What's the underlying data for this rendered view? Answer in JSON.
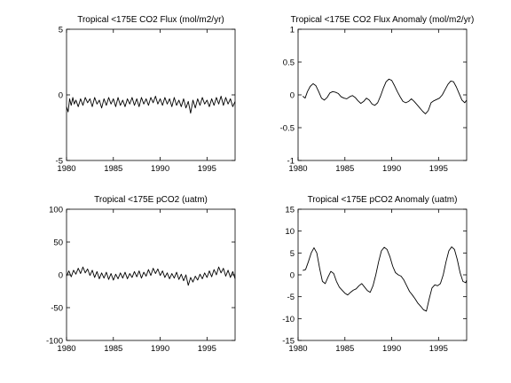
{
  "chart_data": [
    {
      "type": "line",
      "title": "Tropical <175E CO2 Flux (mol/m2/yr)",
      "xlim": [
        1980,
        1998
      ],
      "ylim": [
        -5,
        5
      ],
      "xticks": [
        1980,
        1985,
        1990,
        1995
      ],
      "yticks": [
        -5,
        0,
        5
      ],
      "xtick_labels": [
        "1980",
        "1985",
        "1990",
        "1995"
      ],
      "ytick_labels": [
        "-5",
        "0",
        "5"
      ],
      "series": [
        {
          "color": "#000000",
          "x": [
            1980.0,
            1980.17,
            1980.33,
            1980.5,
            1980.67,
            1980.83,
            1981.0,
            1981.25,
            1981.5,
            1981.75,
            1982.0,
            1982.25,
            1982.5,
            1982.75,
            1983.0,
            1983.25,
            1983.5,
            1983.75,
            1984.0,
            1984.25,
            1984.5,
            1984.75,
            1985.0,
            1985.25,
            1985.5,
            1985.75,
            1986.0,
            1986.25,
            1986.5,
            1986.75,
            1987.0,
            1987.25,
            1987.5,
            1987.75,
            1988.0,
            1988.25,
            1988.5,
            1988.75,
            1989.0,
            1989.25,
            1989.5,
            1989.75,
            1990.0,
            1990.25,
            1990.5,
            1990.75,
            1991.0,
            1991.25,
            1991.5,
            1991.75,
            1992.0,
            1992.25,
            1992.5,
            1992.75,
            1993.0,
            1993.25,
            1993.5,
            1993.75,
            1994.0,
            1994.25,
            1994.5,
            1994.75,
            1995.0,
            1995.25,
            1995.5,
            1995.75,
            1996.0,
            1996.25,
            1996.5,
            1996.75,
            1997.0,
            1997.25,
            1997.5,
            1997.75,
            1998.0
          ],
          "y": [
            -0.9,
            -1.3,
            -0.3,
            -0.8,
            -0.2,
            -0.7,
            -0.4,
            -0.9,
            -0.3,
            -0.8,
            -0.2,
            -0.6,
            -0.3,
            -0.9,
            -0.2,
            -0.7,
            -0.4,
            -1.0,
            -0.3,
            -0.8,
            -0.2,
            -0.7,
            -0.3,
            -0.9,
            -0.2,
            -0.8,
            -0.4,
            -0.9,
            -0.3,
            -0.7,
            -0.2,
            -0.8,
            -0.3,
            -0.9,
            -0.2,
            -0.7,
            -0.3,
            -0.8,
            -0.2,
            -0.6,
            -0.1,
            -0.7,
            -0.3,
            -0.8,
            -0.2,
            -0.7,
            -0.3,
            -0.9,
            -0.2,
            -0.8,
            -0.4,
            -0.9,
            -0.3,
            -1.0,
            -0.5,
            -1.4,
            -0.4,
            -1.0,
            -0.3,
            -0.8,
            -0.2,
            -0.7,
            -0.4,
            -0.9,
            -0.3,
            -0.8,
            -0.2,
            -0.7,
            -0.1,
            -0.8,
            -0.2,
            -0.7,
            -0.3,
            -0.9,
            -0.5
          ]
        }
      ]
    },
    {
      "type": "line",
      "title": "Tropical <175E CO2 Flux Anomaly (mol/m2/yr)",
      "xlim": [
        1980,
        1998
      ],
      "ylim": [
        -1,
        1
      ],
      "xticks": [
        1980,
        1985,
        1990,
        1995
      ],
      "yticks": [
        -1,
        -0.5,
        0,
        0.5,
        1
      ],
      "xtick_labels": [
        "1980",
        "1985",
        "1990",
        "1995"
      ],
      "ytick_labels": [
        "-1",
        "-0.5",
        "0",
        "0.5",
        "1"
      ],
      "series": [
        {
          "color": "#000000",
          "x": [
            1980.5,
            1980.75,
            1981.0,
            1981.3,
            1981.6,
            1981.9,
            1982.2,
            1982.5,
            1982.8,
            1983.1,
            1983.4,
            1983.7,
            1984.0,
            1984.3,
            1984.6,
            1984.9,
            1985.2,
            1985.5,
            1985.8,
            1986.1,
            1986.4,
            1986.7,
            1987.0,
            1987.3,
            1987.6,
            1987.9,
            1988.2,
            1988.5,
            1988.8,
            1989.1,
            1989.4,
            1989.7,
            1990.0,
            1990.3,
            1990.6,
            1990.9,
            1991.2,
            1991.5,
            1991.8,
            1992.1,
            1992.4,
            1992.7,
            1993.0,
            1993.3,
            1993.6,
            1993.9,
            1994.2,
            1994.5,
            1994.8,
            1995.1,
            1995.4,
            1995.7,
            1996.0,
            1996.3,
            1996.6,
            1996.9,
            1997.2,
            1997.5,
            1997.8,
            1998.0
          ],
          "y": [
            -0.02,
            -0.05,
            0.05,
            0.13,
            0.17,
            0.14,
            0.05,
            -0.05,
            -0.08,
            -0.04,
            0.03,
            0.05,
            0.04,
            0.02,
            -0.03,
            -0.05,
            -0.06,
            -0.03,
            -0.01,
            -0.04,
            -0.09,
            -0.13,
            -0.1,
            -0.05,
            -0.08,
            -0.14,
            -0.16,
            -0.12,
            -0.02,
            0.1,
            0.2,
            0.24,
            0.22,
            0.14,
            0.05,
            -0.03,
            -0.1,
            -0.12,
            -0.1,
            -0.06,
            -0.1,
            -0.15,
            -0.2,
            -0.25,
            -0.29,
            -0.24,
            -0.12,
            -0.09,
            -0.07,
            -0.05,
            0.0,
            0.08,
            0.16,
            0.21,
            0.2,
            0.12,
            0.02,
            -0.08,
            -0.12,
            -0.08
          ]
        }
      ]
    },
    {
      "type": "line",
      "title": "Tropical <175E pCO2 (uatm)",
      "xlim": [
        1980,
        1998
      ],
      "ylim": [
        -100,
        100
      ],
      "xticks": [
        1980,
        1985,
        1990,
        1995
      ],
      "yticks": [
        -100,
        -50,
        0,
        50,
        100
      ],
      "xtick_labels": [
        "1980",
        "1985",
        "1990",
        "1995"
      ],
      "ytick_labels": [
        "-100",
        "-50",
        "0",
        "50",
        "100"
      ],
      "series": [
        {
          "color": "#000000",
          "x": [
            1980.0,
            1980.25,
            1980.5,
            1980.75,
            1981.0,
            1981.25,
            1981.5,
            1981.75,
            1982.0,
            1982.25,
            1982.5,
            1982.75,
            1983.0,
            1983.25,
            1983.5,
            1983.75,
            1984.0,
            1984.25,
            1984.5,
            1984.75,
            1985.0,
            1985.25,
            1985.5,
            1985.75,
            1986.0,
            1986.25,
            1986.5,
            1986.75,
            1987.0,
            1987.25,
            1987.5,
            1987.75,
            1988.0,
            1988.25,
            1988.5,
            1988.75,
            1989.0,
            1989.25,
            1989.5,
            1989.75,
            1990.0,
            1990.25,
            1990.5,
            1990.75,
            1991.0,
            1991.25,
            1991.5,
            1991.75,
            1992.0,
            1992.25,
            1992.5,
            1992.75,
            1993.0,
            1993.25,
            1993.5,
            1993.75,
            1994.0,
            1994.25,
            1994.5,
            1994.75,
            1995.0,
            1995.25,
            1995.5,
            1995.75,
            1996.0,
            1996.25,
            1996.5,
            1996.75,
            1997.0,
            1997.25,
            1997.5,
            1997.75,
            1998.0
          ],
          "y": [
            -2,
            6,
            -3,
            7,
            1,
            10,
            2,
            12,
            3,
            9,
            -1,
            7,
            -4,
            5,
            -6,
            3,
            -5,
            4,
            -7,
            2,
            -8,
            1,
            -6,
            3,
            -5,
            4,
            -6,
            2,
            -4,
            5,
            -3,
            6,
            -5,
            4,
            -2,
            8,
            -1,
            10,
            2,
            9,
            -1,
            6,
            -4,
            3,
            -6,
            2,
            -5,
            4,
            -7,
            1,
            -9,
            0,
            -16,
            -4,
            -11,
            -2,
            -8,
            1,
            -6,
            3,
            -4,
            6,
            -3,
            8,
            0,
            12,
            3,
            10,
            -2,
            7,
            -4,
            5,
            -6
          ]
        }
      ]
    },
    {
      "type": "line",
      "title": "Tropical <175E pCO2 Anomaly (uatm)",
      "xlim": [
        1980,
        1998
      ],
      "ylim": [
        -15,
        15
      ],
      "xticks": [
        1980,
        1985,
        1990,
        1995
      ],
      "yticks": [
        -15,
        -10,
        -5,
        0,
        5,
        10,
        15
      ],
      "xtick_labels": [
        "1980",
        "1985",
        "1990",
        "1995"
      ],
      "ytick_labels": [
        "-15",
        "-10",
        "-5",
        "0",
        "5",
        "10",
        "15"
      ],
      "series": [
        {
          "color": "#000000",
          "x": [
            1980.5,
            1980.8,
            1981.1,
            1981.4,
            1981.7,
            1982.0,
            1982.3,
            1982.6,
            1982.9,
            1983.2,
            1983.5,
            1983.8,
            1984.1,
            1984.4,
            1984.7,
            1985.0,
            1985.3,
            1985.6,
            1985.9,
            1986.2,
            1986.5,
            1986.8,
            1987.1,
            1987.4,
            1987.7,
            1988.0,
            1988.3,
            1988.6,
            1988.9,
            1989.2,
            1989.5,
            1989.8,
            1990.1,
            1990.4,
            1990.7,
            1991.0,
            1991.3,
            1991.6,
            1991.9,
            1992.2,
            1992.5,
            1992.8,
            1993.1,
            1993.4,
            1993.7,
            1994.0,
            1994.3,
            1994.6,
            1994.9,
            1995.2,
            1995.5,
            1995.8,
            1996.1,
            1996.4,
            1996.7,
            1997.0,
            1997.3,
            1997.6,
            1997.9,
            1998.0
          ],
          "y": [
            1.0,
            1.2,
            3.0,
            5.0,
            6.2,
            5.0,
            1.5,
            -1.5,
            -2.0,
            -0.5,
            0.8,
            0.3,
            -1.5,
            -2.8,
            -3.5,
            -4.2,
            -4.6,
            -4.0,
            -3.5,
            -3.2,
            -2.5,
            -2.0,
            -2.8,
            -3.6,
            -4.0,
            -2.5,
            0.0,
            3.0,
            5.5,
            6.3,
            5.8,
            4.2,
            2.0,
            0.5,
            0.0,
            -0.3,
            -1.2,
            -2.5,
            -3.8,
            -4.6,
            -5.5,
            -6.5,
            -7.2,
            -8.0,
            -8.3,
            -5.5,
            -3.0,
            -2.3,
            -2.5,
            -2.0,
            0.0,
            3.0,
            5.5,
            6.4,
            5.8,
            3.5,
            0.5,
            -1.5,
            -1.8,
            -1.2
          ]
        }
      ]
    }
  ]
}
